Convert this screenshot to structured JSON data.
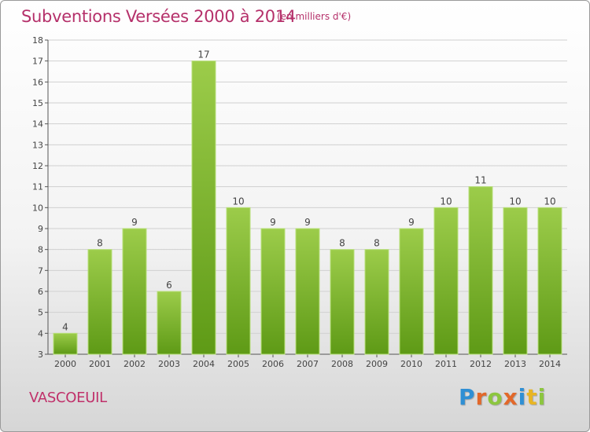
{
  "header": {
    "title": "Subventions Versées 2000 à 2014",
    "unit": "(en milliers d'€)"
  },
  "footer": {
    "commune": "VASCOEUIL",
    "logo_letters": [
      "P",
      "r",
      "o",
      "x",
      "i",
      "t",
      "i"
    ]
  },
  "colors": {
    "title": "#b5306a",
    "bar_top": "#9ccc4a",
    "bar_bottom": "#5e9a16",
    "grid": "#d0d0d0",
    "axis": "#555555"
  },
  "chart_data": {
    "type": "bar",
    "title": "Subventions Versées 2000 à 2014",
    "xlabel": "",
    "ylabel": "",
    "categories": [
      "2000",
      "2001",
      "2002",
      "2003",
      "2004",
      "2005",
      "2006",
      "2007",
      "2008",
      "2009",
      "2010",
      "2011",
      "2012",
      "2013",
      "2014"
    ],
    "values": [
      4,
      8,
      9,
      6,
      17,
      10,
      9,
      9,
      8,
      8,
      9,
      10,
      11,
      10,
      10
    ],
    "ylim": [
      3,
      18
    ],
    "yticks": [
      3,
      4,
      5,
      6,
      7,
      8,
      9,
      10,
      11,
      12,
      13,
      14,
      15,
      16,
      17,
      18
    ],
    "grid": true,
    "data_labels": true
  }
}
